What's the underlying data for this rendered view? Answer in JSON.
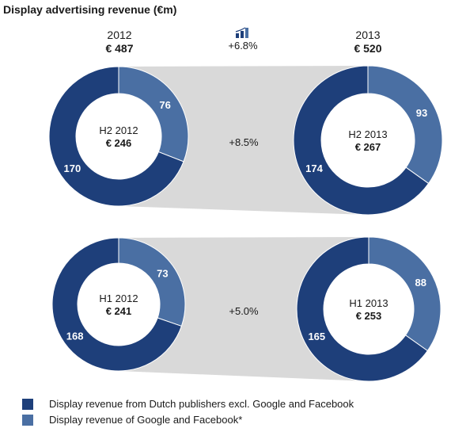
{
  "title": "Display advertising revenue (€m)",
  "years": [
    {
      "year": "2012",
      "total": "€ 487"
    },
    {
      "year": "2013",
      "total": "€ 520"
    }
  ],
  "growth": {
    "year_over_year": "+6.8%",
    "h2": "+8.5%",
    "h1": "+5.0%"
  },
  "colors": {
    "dutch_publishers": "#1e3f7a",
    "google_facebook": "#4a6fa3",
    "connector": "#d9d9d9"
  },
  "icons": [
    "bar-growth-icon"
  ],
  "legend": [
    {
      "label": "Display revenue from Dutch publishers excl. Google and Facebook",
      "color": "#1e3f7a"
    },
    {
      "label": "Display revenue of Google and Facebook*",
      "color": "#4a6fa3"
    }
  ],
  "chart_data": {
    "type": "pie",
    "variant": "donut",
    "series_names": [
      "Display revenue from Dutch publishers excl. Google and Facebook",
      "Display revenue of Google and Facebook*"
    ],
    "donuts": [
      {
        "id": "h2-2012",
        "period": "H2 2012",
        "total": "€ 246",
        "values": {
          "dutch": 170,
          "google_facebook": 76
        }
      },
      {
        "id": "h2-2013",
        "period": "H2 2013",
        "total": "€ 267",
        "values": {
          "dutch": 174,
          "google_facebook": 93
        }
      },
      {
        "id": "h1-2012",
        "period": "H1 2012",
        "total": "€ 241",
        "values": {
          "dutch": 168,
          "google_facebook": 73
        }
      },
      {
        "id": "h1-2013",
        "period": "H1 2013",
        "total": "€ 253",
        "values": {
          "dutch": 165,
          "google_facebook": 88
        }
      }
    ]
  }
}
